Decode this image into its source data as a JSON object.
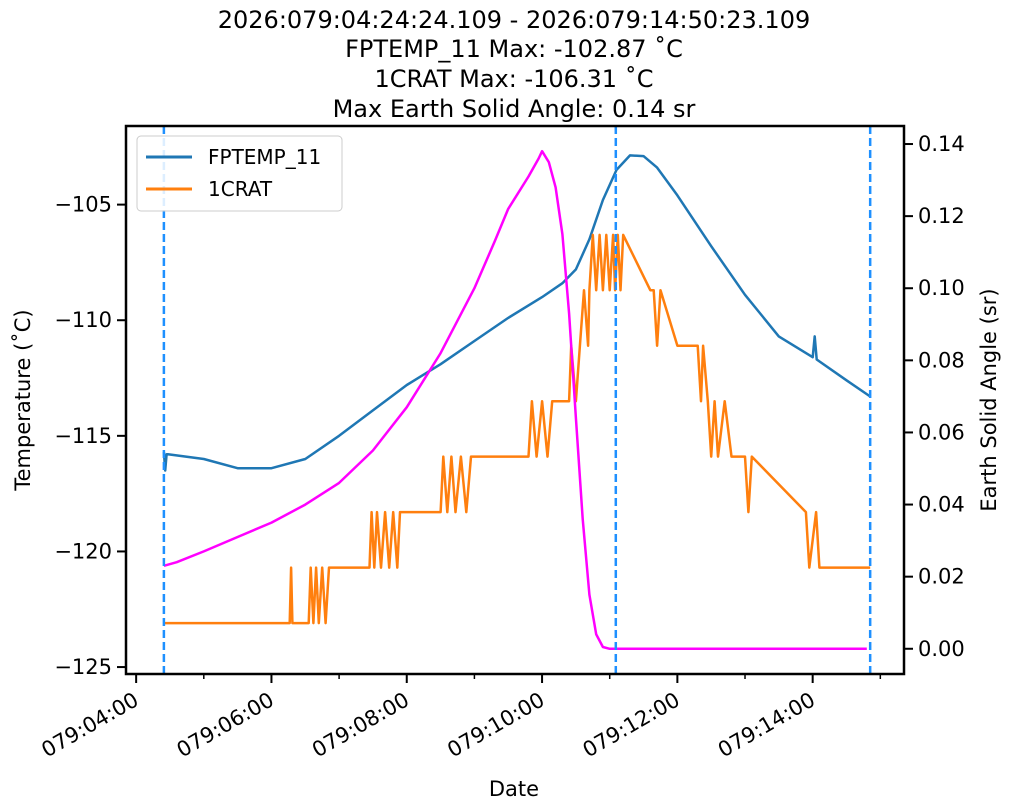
{
  "chart_data": {
    "type": "line",
    "title_lines": [
      "2026:079:04:24:24.109 - 2026:079:14:50:23.109",
      "FPTEMP_11 Max: -102.87 ˚C",
      "1CRAT Max: -106.31 ˚C",
      "Max Earth Solid Angle: 0.14 sr"
    ],
    "xlabel": "Date",
    "ylabel": "Temperature (˚C)",
    "y2label": "Earth Solid Angle (sr)",
    "x_unit": "hours since 079:00:00",
    "xlim": [
      3.85,
      15.35
    ],
    "ylim": [
      -125.3,
      -101.6
    ],
    "y2lim": [
      -0.007,
      0.145
    ],
    "x_ticks": [
      4,
      6,
      8,
      10,
      12,
      14
    ],
    "x_tick_labels": [
      "079:04:00",
      "079:06:00",
      "079:08:00",
      "079:10:00",
      "079:12:00",
      "079:14:00"
    ],
    "x_minor_ticks": [
      5,
      7,
      9,
      11,
      13,
      15
    ],
    "y_ticks": [
      -125,
      -120,
      -115,
      -110,
      -105
    ],
    "y_tick_labels": [
      "−125",
      "−120",
      "−115",
      "−110",
      "−105"
    ],
    "y2_ticks": [
      0.0,
      0.02,
      0.04,
      0.06,
      0.08,
      0.1,
      0.12,
      0.14
    ],
    "y2_tick_labels": [
      "0.00",
      "0.02",
      "0.04",
      "0.06",
      "0.08",
      "0.10",
      "0.12",
      "0.14"
    ],
    "grid": false,
    "legend_position": "top-left",
    "series": [
      {
        "name": "FPTEMP_11",
        "axis": "left",
        "color": "#1f77b4",
        "x": [
          4.41,
          4.43,
          4.45,
          4.47,
          5.0,
          5.5,
          6.0,
          6.5,
          7.0,
          7.5,
          8.0,
          8.5,
          9.0,
          9.5,
          10.0,
          10.3,
          10.5,
          10.7,
          10.9,
          11.1,
          11.3,
          11.5,
          11.7,
          12.0,
          12.5,
          13.0,
          13.5,
          14.0,
          14.03,
          14.06,
          14.5,
          14.85
        ],
        "y": [
          -115.7,
          -116.5,
          -115.8,
          -115.8,
          -116.0,
          -116.4,
          -116.4,
          -116.0,
          -115.0,
          -113.9,
          -112.8,
          -111.9,
          -110.9,
          -109.9,
          -109.0,
          -108.4,
          -107.8,
          -106.5,
          -104.8,
          -103.5,
          -102.87,
          -102.9,
          -103.4,
          -104.6,
          -106.8,
          -108.9,
          -110.7,
          -111.6,
          -110.7,
          -111.7,
          -112.6,
          -113.3
        ]
      },
      {
        "name": "1CRAT",
        "axis": "left",
        "color": "#ff7f0e",
        "x": [
          4.41,
          6.27,
          6.29,
          6.31,
          6.55,
          6.58,
          6.62,
          6.66,
          6.7,
          6.75,
          6.8,
          6.85,
          7.45,
          7.48,
          7.52,
          7.56,
          7.62,
          7.68,
          7.74,
          7.8,
          7.86,
          7.9,
          8.5,
          8.54,
          8.6,
          8.66,
          8.72,
          8.8,
          8.88,
          8.95,
          9.8,
          9.85,
          9.92,
          10.0,
          10.08,
          10.15,
          10.4,
          10.43,
          10.5,
          10.56,
          10.62,
          10.68,
          10.7,
          10.75,
          10.8,
          10.85,
          10.9,
          10.95,
          11.0,
          11.05,
          11.08,
          11.12,
          11.16,
          11.2,
          11.6,
          11.65,
          11.7,
          11.75,
          12.0,
          12.05,
          12.3,
          12.35,
          12.38,
          12.45,
          12.5,
          12.55,
          12.6,
          12.7,
          12.8,
          13.0,
          13.05,
          13.1,
          13.9,
          13.95,
          14.05,
          14.1,
          14.85
        ],
        "y": [
          -123.1,
          -123.1,
          -120.7,
          -123.1,
          -123.1,
          -120.7,
          -123.1,
          -120.7,
          -123.1,
          -120.7,
          -123.1,
          -120.7,
          -120.7,
          -118.3,
          -120.7,
          -118.3,
          -120.7,
          -118.3,
          -120.7,
          -118.3,
          -120.7,
          -118.3,
          -118.3,
          -115.9,
          -118.3,
          -115.9,
          -118.3,
          -115.9,
          -118.3,
          -115.9,
          -115.9,
          -113.5,
          -115.9,
          -113.5,
          -115.9,
          -113.5,
          -113.5,
          -111.1,
          -113.5,
          -111.1,
          -108.7,
          -111.1,
          -108.7,
          -106.31,
          -108.7,
          -106.31,
          -108.7,
          -106.31,
          -108.7,
          -106.31,
          -108.7,
          -106.31,
          -108.7,
          -106.31,
          -108.7,
          -108.7,
          -111.1,
          -108.7,
          -111.1,
          -111.1,
          -111.1,
          -113.5,
          -111.1,
          -113.5,
          -115.9,
          -113.5,
          -115.9,
          -113.5,
          -115.9,
          -115.9,
          -118.3,
          -115.9,
          -118.3,
          -120.7,
          -118.3,
          -120.7,
          -120.7
        ]
      },
      {
        "name": "Earth Solid Angle",
        "axis": "right",
        "color": "#ff00ff",
        "x": [
          4.41,
          4.6,
          5.0,
          5.5,
          6.0,
          6.5,
          7.0,
          7.5,
          8.0,
          8.5,
          9.0,
          9.3,
          9.5,
          9.8,
          9.95,
          10.0,
          10.1,
          10.2,
          10.3,
          10.4,
          10.5,
          10.6,
          10.7,
          10.8,
          10.9,
          11.0,
          11.5,
          12.0,
          13.0,
          14.0,
          14.8
        ],
        "y": [
          0.023,
          0.024,
          0.027,
          0.031,
          0.035,
          0.04,
          0.046,
          0.055,
          0.067,
          0.082,
          0.1,
          0.113,
          0.122,
          0.131,
          0.136,
          0.138,
          0.135,
          0.128,
          0.115,
          0.093,
          0.064,
          0.036,
          0.015,
          0.004,
          0.0005,
          0.0,
          0.0,
          0.0,
          0.0,
          0.0,
          0.0
        ]
      }
    ],
    "vlines": {
      "color": "#1e90ff",
      "x": [
        4.41,
        11.09,
        14.85
      ]
    }
  }
}
